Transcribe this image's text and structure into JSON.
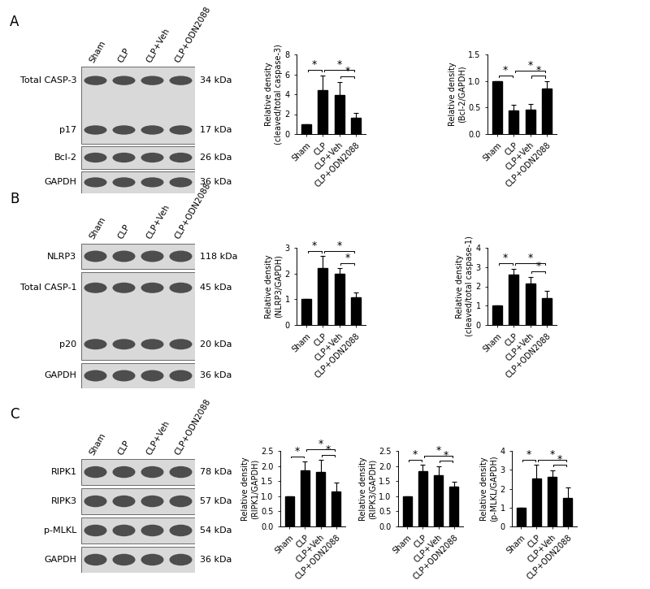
{
  "blots": [
    {
      "panel": "A",
      "lanes": [
        "Sham",
        "CLP",
        "CLP+Veh",
        "CLP+ODN2088"
      ],
      "membranes": [
        {
          "bands": [
            {
              "label": "Total CASP-3",
              "kda": "34 kDa"
            },
            {
              "label": "p17",
              "kda": "17 kDa"
            }
          ]
        },
        {
          "bands": [
            {
              "label": "Bcl-2",
              "kda": "26 kDa"
            }
          ]
        },
        {
          "bands": [
            {
              "label": "GAPDH",
              "kda": "36 kDa"
            }
          ]
        }
      ]
    },
    {
      "panel": "B",
      "lanes": [
        "Sham",
        "CLP",
        "CLP+Veh",
        "CLP+ODN2088"
      ],
      "membranes": [
        {
          "bands": [
            {
              "label": "NLRP3",
              "kda": "118 kDa"
            }
          ]
        },
        {
          "bands": [
            {
              "label": "Total CASP-1",
              "kda": "45 kDa"
            },
            {
              "label": "p20",
              "kda": "20 kDa"
            }
          ]
        },
        {
          "bands": [
            {
              "label": "GAPDH",
              "kda": "36 kDa"
            }
          ]
        }
      ]
    },
    {
      "panel": "C",
      "lanes": [
        "Sham",
        "CLP",
        "CLP+Veh",
        "CLP+ODN2088"
      ],
      "membranes": [
        {
          "bands": [
            {
              "label": "RIPK1",
              "kda": "78 kDa"
            }
          ]
        },
        {
          "bands": [
            {
              "label": "RIPK3",
              "kda": "57 kDa"
            }
          ]
        },
        {
          "bands": [
            {
              "label": "p-MLKL",
              "kda": "54 kDa"
            }
          ]
        },
        {
          "bands": [
            {
              "label": "GAPDH",
              "kda": "36 kDa"
            }
          ]
        }
      ]
    }
  ],
  "chart_data": [
    {
      "type": "bar",
      "y_label": "Relative density\n(cleaved/total caspase-3)",
      "categories": [
        "Sham",
        "CLP",
        "CLP+Veh",
        "CLP+ODN2088"
      ],
      "values": [
        1.0,
        4.4,
        3.9,
        1.6
      ],
      "errors": [
        0,
        1.5,
        1.3,
        0.5
      ],
      "color": "#000000",
      "ylim": [
        0,
        8
      ],
      "yticks": [
        0,
        2,
        4,
        6,
        8
      ],
      "significance": [
        {
          "from": 0,
          "to": 1,
          "label": "*"
        },
        {
          "from": 1,
          "to": 3,
          "label": "*"
        },
        {
          "from": 2,
          "to": 3,
          "label": "*"
        }
      ]
    },
    {
      "type": "bar",
      "y_label": "Relative density\n(Bcl-2/GAPDH)",
      "categories": [
        "Sham",
        "CLP",
        "CLP+Veh",
        "CLP+ODN2088"
      ],
      "values": [
        1.0,
        0.45,
        0.46,
        0.86
      ],
      "errors": [
        0,
        0.1,
        0.1,
        0.13
      ],
      "color": "#000000",
      "ylim": [
        0,
        1.5
      ],
      "yticks": [
        {
          "value": 0,
          "label": "0.0"
        },
        0.5,
        {
          "value": 1,
          "label": "1.0"
        },
        1.5
      ],
      "significance": [
        {
          "from": 0,
          "to": 1,
          "label": "*"
        },
        {
          "from": 1,
          "to": 3,
          "label": "*"
        },
        {
          "from": 2,
          "to": 3,
          "label": "*"
        }
      ]
    },
    {
      "type": "bar",
      "y_label": "Relative density\n(NLRP3/GAPDH)",
      "categories": [
        "Sham",
        "CLP",
        "CLP+Veh",
        "CLP+ODN2088"
      ],
      "values": [
        1.0,
        2.22,
        2.0,
        1.08
      ],
      "errors": [
        0,
        0.45,
        0.2,
        0.18
      ],
      "color": "#000000",
      "ylim": [
        0,
        3
      ],
      "yticks": [
        0,
        1,
        2,
        3
      ],
      "significance": [
        {
          "from": 0,
          "to": 1,
          "label": "*"
        },
        {
          "from": 1,
          "to": 3,
          "label": "*"
        },
        {
          "from": 2,
          "to": 3,
          "label": "*"
        }
      ]
    },
    {
      "type": "bar",
      "y_label": "Relative density\n(cleaved/total caspase-1)",
      "categories": [
        "Sham",
        "CLP",
        "CLP+Veh",
        "CLP+ODN2088"
      ],
      "values": [
        1.0,
        2.6,
        2.15,
        1.4
      ],
      "errors": [
        0,
        0.3,
        0.35,
        0.35
      ],
      "color": "#000000",
      "ylim": [
        0,
        4
      ],
      "yticks": [
        0,
        1,
        2,
        3,
        4
      ],
      "significance": [
        {
          "from": 0,
          "to": 1,
          "label": "*"
        },
        {
          "from": 1,
          "to": 3,
          "label": "*"
        },
        {
          "from": 2,
          "to": 3,
          "label": "*"
        }
      ]
    },
    {
      "type": "bar",
      "y_label": "Relative density\n(RIPK1/GAPDH)",
      "categories": [
        "Sham",
        "CLP",
        "CLP+Veh",
        "CLP+ODN2088"
      ],
      "values": [
        1.0,
        1.85,
        1.8,
        1.15
      ],
      "errors": [
        0,
        0.3,
        0.4,
        0.3
      ],
      "color": "#000000",
      "ylim": [
        0,
        2.5
      ],
      "yticks": [
        {
          "value": 0,
          "label": "0.0"
        },
        0.5,
        {
          "value": 1,
          "label": "1.0"
        },
        1.5,
        {
          "value": 2,
          "label": "2.0"
        },
        2.5
      ],
      "significance": [
        {
          "from": 0,
          "to": 1,
          "label": "*"
        },
        {
          "from": 1,
          "to": 3,
          "label": "*"
        },
        {
          "from": 2,
          "to": 3,
          "label": "*"
        }
      ]
    },
    {
      "type": "bar",
      "y_label": "Relative density\n(RIPK3/GAPDH)",
      "categories": [
        "Sham",
        "CLP",
        "CLP+Veh",
        "CLP+ODN2088"
      ],
      "values": [
        1.0,
        1.83,
        1.7,
        1.33
      ],
      "errors": [
        0,
        0.2,
        0.3,
        0.15
      ],
      "color": "#000000",
      "ylim": [
        0,
        2.5
      ],
      "yticks": [
        {
          "value": 0,
          "label": "0.0"
        },
        0.5,
        {
          "value": 1,
          "label": "1.0"
        },
        1.5,
        {
          "value": 2,
          "label": "2.0"
        },
        2.5
      ],
      "significance": [
        {
          "from": 0,
          "to": 1,
          "label": "*"
        },
        {
          "from": 1,
          "to": 3,
          "label": "*"
        },
        {
          "from": 2,
          "to": 3,
          "label": "*"
        }
      ]
    },
    {
      "type": "bar",
      "y_label": "Relative density\n(p-MLKL/GAPDH)",
      "categories": [
        "Sham",
        "CLP",
        "CLP+Veh",
        "CLP+ODN2088"
      ],
      "values": [
        1.0,
        2.55,
        2.62,
        1.5
      ],
      "errors": [
        0,
        0.7,
        0.35,
        0.55
      ],
      "color": "#000000",
      "ylim": [
        0,
        4
      ],
      "yticks": [
        0,
        1,
        2,
        3,
        4
      ],
      "significance": [
        {
          "from": 0,
          "to": 1,
          "label": "*"
        },
        {
          "from": 1,
          "to": 3,
          "label": "*"
        },
        {
          "from": 2,
          "to": 3,
          "label": "*"
        }
      ]
    }
  ]
}
